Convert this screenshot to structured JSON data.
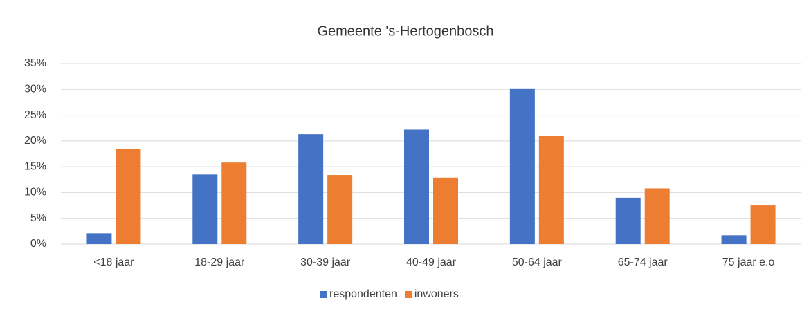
{
  "chart_data": {
    "type": "bar",
    "title": "Gemeente 's-Hertogenbosch",
    "categories": [
      "<18 jaar",
      "18-29 jaar",
      "30-39 jaar",
      "40-49 jaar",
      "50-64 jaar",
      "65-74 jaar",
      "75 jaar e.o"
    ],
    "series": [
      {
        "name": "respondenten",
        "color": "#4472c4",
        "values": [
          2.1,
          13.5,
          21.3,
          22.2,
          30.2,
          9.0,
          1.7
        ]
      },
      {
        "name": "inwoners",
        "color": "#ed7d31",
        "values": [
          18.4,
          15.8,
          13.4,
          12.9,
          21.0,
          10.8,
          7.5
        ]
      }
    ],
    "ylim": [
      0,
      35
    ],
    "yticks": [
      {
        "value": 0,
        "label": "0%"
      },
      {
        "value": 5,
        "label": "5%"
      },
      {
        "value": 10,
        "label": "10%"
      },
      {
        "value": 15,
        "label": "15%"
      },
      {
        "value": 20,
        "label": "20%"
      },
      {
        "value": 25,
        "label": "25%"
      },
      {
        "value": 30,
        "label": "30%"
      },
      {
        "value": 35,
        "label": "35%"
      }
    ],
    "grid": true,
    "legend": "bottom"
  }
}
